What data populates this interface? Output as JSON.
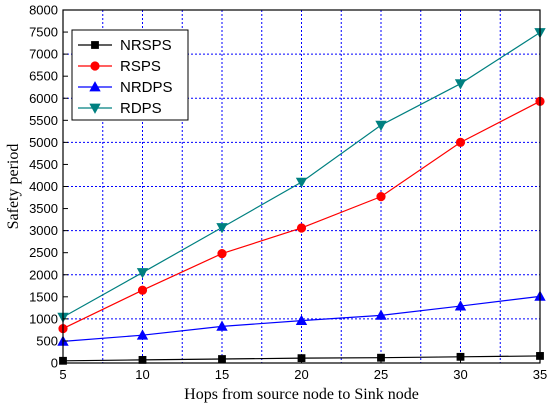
{
  "chart_data": {
    "type": "line",
    "title": "",
    "xlabel": "Hops from source node to Sink node",
    "ylabel": "Safety period",
    "x": [
      5,
      10,
      15,
      20,
      25,
      30,
      35
    ],
    "xticks": [
      5,
      10,
      15,
      20,
      25,
      30,
      35
    ],
    "yticks": [
      0,
      500,
      1000,
      1500,
      2000,
      2500,
      3000,
      3500,
      4000,
      4500,
      5000,
      5500,
      6000,
      6500,
      7000,
      7500,
      8000
    ],
    "xlim": [
      5,
      35
    ],
    "ylim": [
      0,
      8000
    ],
    "grid": true,
    "grid_color": "#0000ff",
    "legend_position": "top-left",
    "series": [
      {
        "name": "NRSPS",
        "color": "#000000",
        "marker": "square",
        "values": [
          50,
          70,
          90,
          110,
          120,
          140,
          160
        ]
      },
      {
        "name": "RSPS",
        "color": "#ff0000",
        "marker": "circle",
        "values": [
          780,
          1650,
          2480,
          3060,
          3770,
          5000,
          5930
        ]
      },
      {
        "name": "NRDPS",
        "color": "#0000ff",
        "marker": "triangle-up",
        "values": [
          490,
          630,
          830,
          960,
          1080,
          1290,
          1510
        ]
      },
      {
        "name": "RDPS",
        "color": "#008080",
        "marker": "triangle-down",
        "values": [
          1040,
          2050,
          3070,
          4100,
          5390,
          6330,
          7490
        ]
      }
    ]
  }
}
